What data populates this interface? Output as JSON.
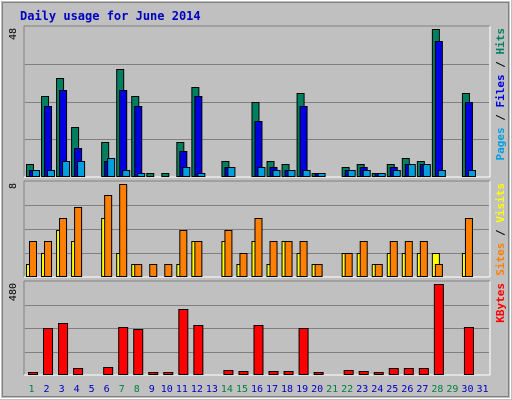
{
  "chart_data": {
    "type": "bar",
    "title": "Daily usage for June 2014",
    "colors": {
      "title": "#0000c0",
      "background": "#c0c0c0",
      "pages": "#00a0e0",
      "files": "#0000e0",
      "hits": "#008060",
      "visits": "#ffff00",
      "sites": "#ff8000",
      "kbytes": "#ff0000",
      "weekday_tick": "#0000c0",
      "weekend_tick": "#008040"
    },
    "categories": [
      "1",
      "2",
      "3",
      "4",
      "5",
      "6",
      "7",
      "8",
      "9",
      "10",
      "11",
      "12",
      "13",
      "14",
      "15",
      "16",
      "17",
      "18",
      "19",
      "20",
      "21",
      "22",
      "23",
      "24",
      "25",
      "26",
      "27",
      "28",
      "29",
      "30",
      "31"
    ],
    "weekend_days": [
      "1",
      "7",
      "8",
      "14",
      "15",
      "21",
      "22",
      "28",
      "29"
    ],
    "panels": [
      {
        "id": "hits",
        "ymax_label": "48",
        "ymax": 48,
        "right_label": {
          "parts": [
            {
              "text": "Pages",
              "color": "#00a0e0"
            },
            {
              "text": " / ",
              "color": "#000000"
            },
            {
              "text": "Files",
              "color": "#0000e0"
            },
            {
              "text": " / ",
              "color": "#000000"
            },
            {
              "text": "Hits",
              "color": "#008060"
            }
          ]
        },
        "series": [
          {
            "name": "Hits",
            "values": [
              4,
              26,
              32,
              16,
              0,
              11,
              35,
              26,
              1,
              1,
              11,
              29,
              0,
              5,
              0,
              24,
              5,
              4,
              27,
              1,
              0,
              3,
              4,
              1,
              4,
              6,
              5,
              48,
              0,
              27,
              0
            ]
          },
          {
            "name": "Files",
            "values": [
              2,
              23,
              28,
              9,
              0,
              5,
              28,
              23,
              0,
              0,
              8,
              26,
              0,
              3,
              0,
              18,
              3,
              2,
              23,
              1,
              0,
              2,
              3,
              1,
              3,
              4,
              4,
              44,
              0,
              24,
              0
            ]
          },
          {
            "name": "Pages",
            "values": [
              2,
              2,
              5,
              5,
              0,
              6,
              2,
              1,
              0,
              0,
              3,
              1,
              0,
              3,
              0,
              3,
              2,
              2,
              2,
              1,
              0,
              2,
              2,
              1,
              2,
              4,
              4,
              2,
              0,
              2,
              0
            ]
          }
        ]
      },
      {
        "id": "visits",
        "ymax_label": "8",
        "ymax": 8,
        "right_label": {
          "parts": [
            {
              "text": "Sites",
              "color": "#ff8000"
            },
            {
              "text": " / ",
              "color": "#000000"
            },
            {
              "text": "Visits",
              "color": "#ffff00"
            }
          ]
        },
        "series": [
          {
            "name": "Visits",
            "values": [
              1,
              2,
              4,
              3,
              0,
              5,
              2,
              1,
              0,
              0,
              1,
              3,
              0,
              3,
              1,
              3,
              1,
              3,
              2,
              1,
              0,
              2,
              2,
              1,
              2,
              2,
              2,
              2,
              0,
              2,
              0
            ]
          },
          {
            "name": "Sites",
            "values": [
              3,
              3,
              5,
              6,
              0,
              7,
              8,
              1,
              1,
              1,
              4,
              3,
              0,
              4,
              2,
              5,
              3,
              3,
              3,
              1,
              0,
              2,
              3,
              1,
              3,
              3,
              3,
              1,
              0,
              5,
              0
            ]
          }
        ]
      },
      {
        "id": "kbytes",
        "ymax_label": "480",
        "ymax": 480,
        "right_label": {
          "parts": [
            {
              "text": "KBytes",
              "color": "#ff0000"
            }
          ]
        },
        "series": [
          {
            "name": "KBytes",
            "values": [
              10,
              245,
              270,
              30,
              0,
              35,
              250,
              240,
              5,
              5,
              345,
              260,
              0,
              20,
              15,
              260,
              15,
              15,
              245,
              5,
              0,
              20,
              15,
              10,
              30,
              30,
              30,
              480,
              0,
              250,
              0
            ]
          }
        ]
      }
    ]
  }
}
